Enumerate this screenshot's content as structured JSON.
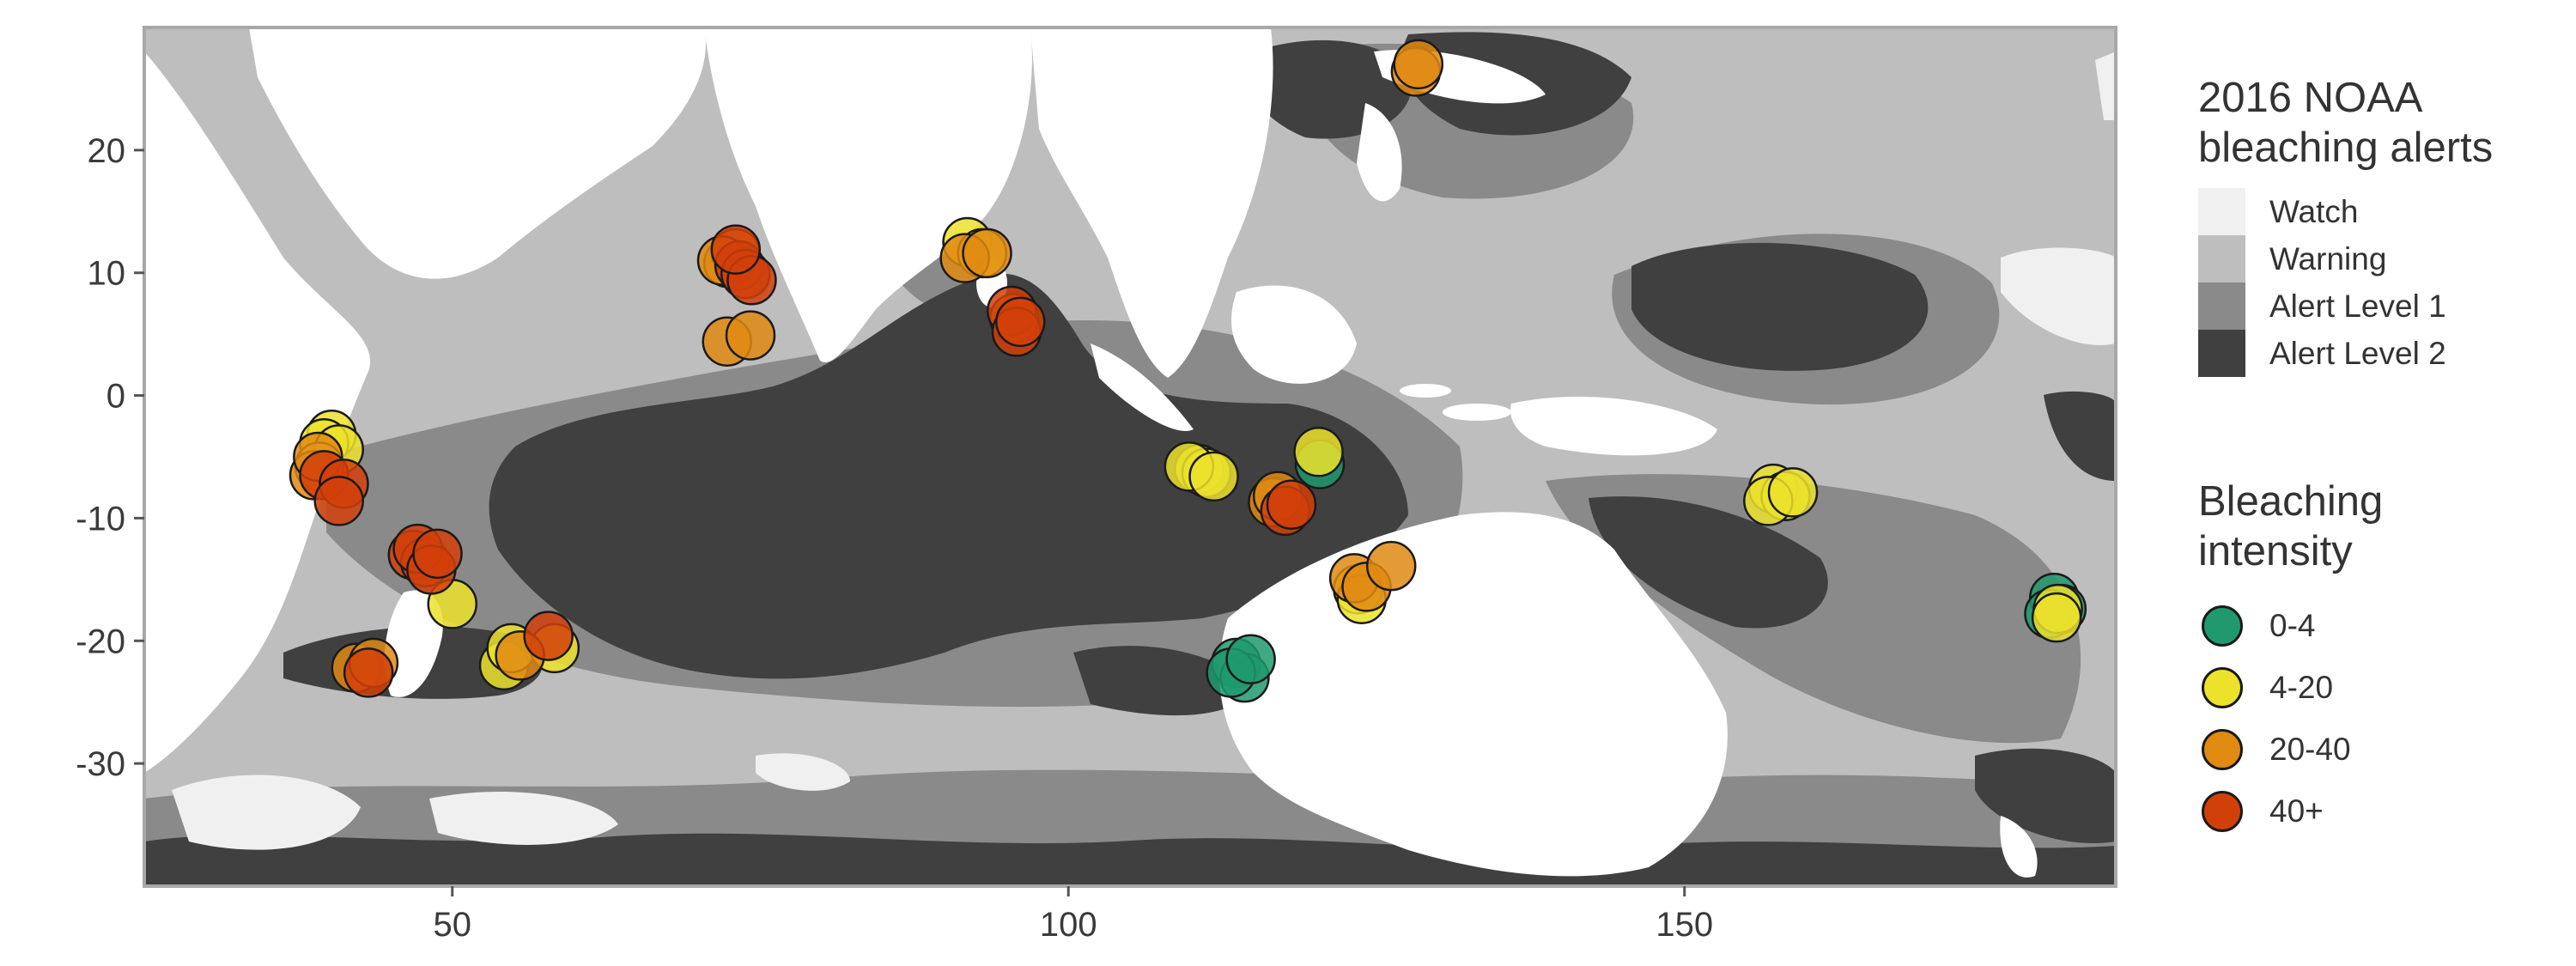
{
  "colors": {
    "watch": "#f0f0f0",
    "warning": "#bebebe",
    "alert1": "#8a8a8a",
    "alert2": "#404040",
    "land": "#ffffff",
    "border": "#a8a8a8"
  },
  "axes": {
    "x_ticks": [
      "50",
      "100",
      "150"
    ],
    "y_ticks": [
      "20",
      "10",
      "0",
      "-10",
      "-20",
      "-30"
    ]
  },
  "legend_alerts": {
    "title_line1": "2016 NOAA",
    "title_line2": "bleaching alerts",
    "items": [
      {
        "label": "Watch",
        "color": "#f0f0f0"
      },
      {
        "label": "Warning",
        "color": "#bebebe"
      },
      {
        "label": "Alert Level 1",
        "color": "#8a8a8a"
      },
      {
        "label": "Alert Level 2",
        "color": "#404040"
      }
    ]
  },
  "legend_intensity": {
    "title_line1": "Bleaching",
    "title_line2": "intensity",
    "items": [
      {
        "label": "0-4",
        "color": "#1f9a6e"
      },
      {
        "label": "4-20",
        "color": "#ece22c"
      },
      {
        "label": "20-40",
        "color": "#e08a12"
      },
      {
        "label": "40+",
        "color": "#d2400a"
      }
    ]
  },
  "chart_data": {
    "type": "scatter",
    "title": "",
    "xlabel": "",
    "ylabel": "",
    "xlim": [
      25,
      185
    ],
    "ylim": [
      -40,
      30
    ],
    "x_ticks": [
      50,
      100,
      150
    ],
    "y_ticks": [
      20,
      10,
      0,
      -10,
      -20,
      -30
    ],
    "grid": false,
    "legend_position": "right",
    "series": [
      {
        "name": "0-4",
        "color": "#1f9a6e",
        "points": [
          [
            113.6,
            -21.8
          ],
          [
            114.3,
            -23
          ],
          [
            113.2,
            -22.6
          ],
          [
            114.8,
            -21.5
          ],
          [
            120.4,
            -5.6
          ],
          [
            180,
            -16.5
          ],
          [
            180.6,
            -17.4
          ],
          [
            179.6,
            -17.8
          ]
        ]
      },
      {
        "name": "4-20",
        "color": "#ece22c",
        "points": [
          [
            40.2,
            -3.2
          ],
          [
            39.6,
            -3.9
          ],
          [
            40.8,
            -4.4
          ],
          [
            39.2,
            -5.8
          ],
          [
            50,
            -17
          ],
          [
            54.2,
            -22
          ],
          [
            54.8,
            -20.6
          ],
          [
            58.3,
            -20.6
          ],
          [
            91.8,
            12.5
          ],
          [
            93,
            11.6
          ],
          [
            110.6,
            -6
          ],
          [
            111.2,
            -6.3
          ],
          [
            109.8,
            -5.8
          ],
          [
            111.8,
            -6.6
          ],
          [
            120.3,
            -4.6
          ],
          [
            123.5,
            -15.8
          ],
          [
            123.8,
            -16.6
          ],
          [
            157.2,
            -7.6
          ],
          [
            158.2,
            -8.2
          ],
          [
            156.8,
            -8.6
          ],
          [
            158.8,
            -7.9
          ],
          [
            180.3,
            -17.4
          ],
          [
            180.2,
            -18.1
          ]
        ]
      },
      {
        "name": "20-40",
        "color": "#e08a12",
        "points": [
          [
            38.8,
            -6.5
          ],
          [
            39.1,
            -5
          ],
          [
            42.2,
            -22.2
          ],
          [
            43.6,
            -21.8
          ],
          [
            55.5,
            -21.2
          ],
          [
            72.4,
            10.8
          ],
          [
            73,
            11.6
          ],
          [
            71.9,
            11
          ],
          [
            72.3,
            4.4
          ],
          [
            74.2,
            4.9
          ],
          [
            91.6,
            11.2
          ],
          [
            93.4,
            11.6
          ],
          [
            95.6,
            6.3
          ],
          [
            116.6,
            -8.7
          ],
          [
            117,
            -8.2
          ],
          [
            123.2,
            -14.9
          ],
          [
            124.2,
            -15.6
          ],
          [
            126.2,
            -13.9
          ],
          [
            128.2,
            26.4
          ],
          [
            128.4,
            27
          ]
        ]
      },
      {
        "name": "40+",
        "color": "#d2400a",
        "points": [
          [
            39.6,
            -6.5
          ],
          [
            41.2,
            -7.2
          ],
          [
            40.8,
            -8.6
          ],
          [
            46.8,
            -13
          ],
          [
            47.8,
            -13.6
          ],
          [
            47.2,
            -12.5
          ],
          [
            48.3,
            -14.2
          ],
          [
            48.8,
            -12.9
          ],
          [
            43.2,
            -22.6
          ],
          [
            57.8,
            -19.6
          ],
          [
            73.3,
            10.6
          ],
          [
            73.8,
            9.9
          ],
          [
            74.3,
            9.4
          ],
          [
            73,
            11.9
          ],
          [
            95.4,
            6.9
          ],
          [
            95.8,
            5.2
          ],
          [
            96.1,
            6
          ],
          [
            117.6,
            -9.4
          ],
          [
            118.1,
            -8.9
          ]
        ]
      }
    ]
  }
}
